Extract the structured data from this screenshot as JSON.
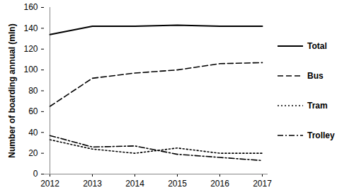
{
  "chart_data": {
    "type": "line",
    "y_label": "Number of boarding annual (mln)",
    "categories": [
      "2012",
      "2013",
      "2014",
      "2015",
      "2016",
      "2017"
    ],
    "series": [
      {
        "name": "Total",
        "color": "#000000",
        "line_style": "solid",
        "values": [
          134,
          142,
          142,
          143,
          142,
          142
        ]
      },
      {
        "name": "Bus",
        "color": "#000000",
        "line_style": "dashed",
        "values": [
          65,
          92,
          97,
          100,
          106,
          107
        ]
      },
      {
        "name": "Tram",
        "color": "#000000",
        "line_style": "dotted",
        "values": [
          33,
          24,
          20,
          25,
          20,
          20
        ]
      },
      {
        "name": "Trolley",
        "color": "#000000",
        "line_style": "dashdot",
        "values": [
          37,
          26,
          27,
          19,
          16,
          13
        ]
      }
    ],
    "ylim": [
      0,
      160
    ],
    "yticks": [
      0,
      20,
      40,
      60,
      80,
      100,
      120,
      140,
      160
    ],
    "grid": false,
    "legend": "right"
  }
}
